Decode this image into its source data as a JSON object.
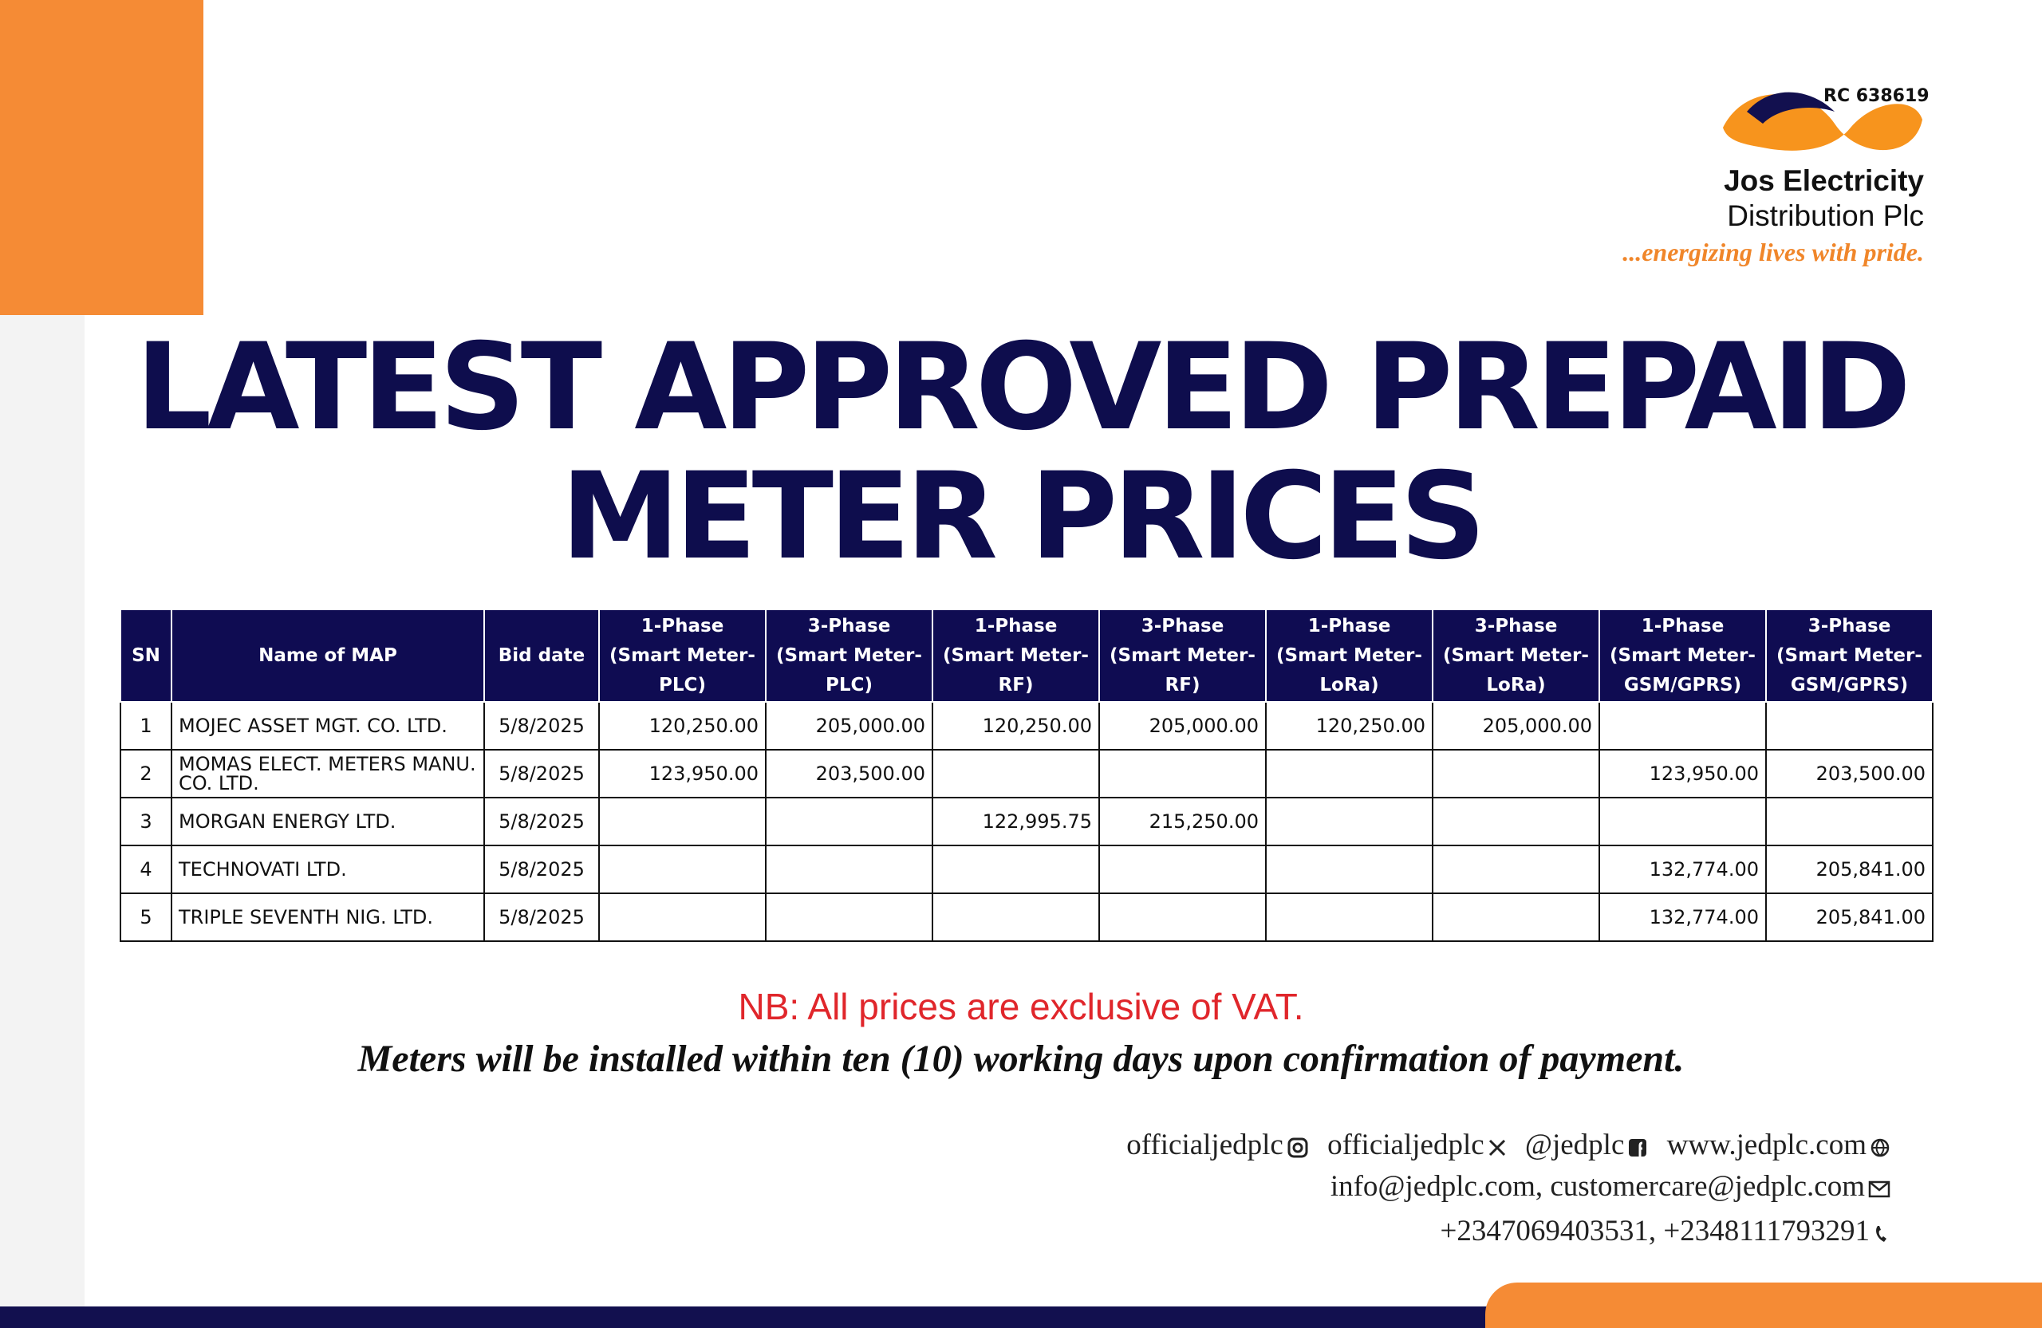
{
  "header": {
    "rc": "RC 638619",
    "company_line1": "Jos Electricity",
    "company_line2": "Distribution Plc",
    "tagline": "...energizing lives with pride."
  },
  "title_lines": [
    "LATEST APPROVED PREPAID",
    "METER PRICES"
  ],
  "table": {
    "columns": [
      [
        "SN"
      ],
      [
        "Name of MAP"
      ],
      [
        "Bid date"
      ],
      [
        "1-Phase",
        "(Smart Meter-",
        "PLC)"
      ],
      [
        "3-Phase",
        "(Smart Meter-",
        "PLC)"
      ],
      [
        "1-Phase",
        "(Smart Meter-",
        "RF)"
      ],
      [
        "3-Phase",
        "(Smart Meter-",
        "RF)"
      ],
      [
        "1-Phase",
        "(Smart Meter-",
        "LoRa)"
      ],
      [
        "3-Phase",
        "(Smart Meter-",
        "LoRa)"
      ],
      [
        "1-Phase",
        "(Smart Meter-",
        "GSM/GPRS)"
      ],
      [
        "3-Phase",
        "(Smart Meter-",
        "GSM/GPRS)"
      ]
    ],
    "rows": [
      [
        "1",
        "MOJEC ASSET MGT. CO. LTD.",
        "5/8/2025",
        "120,250.00",
        "205,000.00",
        "120,250.00",
        "205,000.00",
        "120,250.00",
        "205,000.00",
        null,
        null
      ],
      [
        "2",
        "MOMAS ELECT. METERS MANU. CO. LTD.",
        "5/8/2025",
        "123,950.00",
        "203,500.00",
        null,
        null,
        null,
        null,
        "123,950.00",
        "203,500.00"
      ],
      [
        "3",
        "MORGAN ENERGY LTD.",
        "5/8/2025",
        null,
        null,
        "122,995.75",
        "215,250.00",
        null,
        null,
        null,
        null
      ],
      [
        "4",
        "TECHNOVATI LTD.",
        "5/8/2025",
        null,
        null,
        null,
        null,
        null,
        null,
        "132,774.00",
        "205,841.00"
      ],
      [
        "5",
        "TRIPLE SEVENTH NIG. LTD.",
        "5/8/2025",
        null,
        null,
        null,
        null,
        null,
        null,
        "132,774.00",
        "205,841.00"
      ]
    ]
  },
  "notes": {
    "nb": "NB: All prices are exclusive of VAT.",
    "installation": "Meters will be installed within ten (10) working days upon confirmation of  payment."
  },
  "contacts": {
    "instagram": "officialjedplc",
    "x": "officialjedplc",
    "facebook": "@jedplc",
    "website": "www.jedplc.com",
    "emails": "info@jedplc.com, customercare@jedplc.com",
    "phones": "+2347069403531, +2348111793291"
  }
}
